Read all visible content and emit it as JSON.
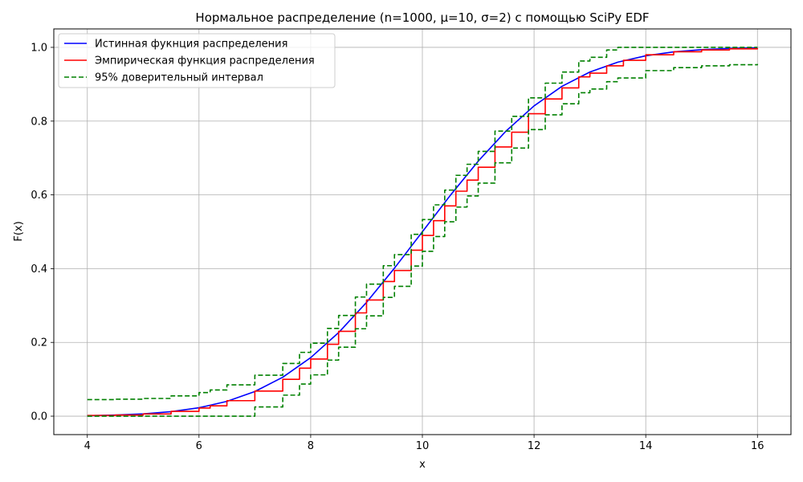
{
  "chart_data": {
    "type": "line",
    "title": "Нормальное распределение (n=1000, μ=10, σ=2) с помощью SciPy EDF",
    "xlabel": "x",
    "ylabel": "F(x)",
    "xlim": [
      3.4,
      16.6
    ],
    "ylim": [
      -0.05,
      1.05
    ],
    "xticks": [
      4,
      6,
      8,
      10,
      12,
      14,
      16
    ],
    "xtick_labels": [
      "4",
      "6",
      "8",
      "10",
      "12",
      "14",
      "16"
    ],
    "yticks": [
      0.0,
      0.2,
      0.4,
      0.6,
      0.8,
      1.0
    ],
    "ytick_labels": [
      "0.0",
      "0.2",
      "0.4",
      "0.6",
      "0.8",
      "1.0"
    ],
    "grid": true,
    "legend_placement": "upper-left",
    "series": [
      {
        "name": "Истинная фукнция распределения",
        "color": "#0000ff",
        "style": "solid",
        "x": [
          4,
          4.5,
          5,
          5.5,
          6,
          6.5,
          7,
          7.5,
          8,
          8.5,
          9,
          9.5,
          10,
          10.5,
          11,
          11.5,
          12,
          12.5,
          13,
          13.5,
          14,
          14.5,
          15,
          15.5,
          16
        ],
        "y": [
          0.0013,
          0.003,
          0.0062,
          0.0122,
          0.0228,
          0.0401,
          0.0668,
          0.1056,
          0.1587,
          0.2266,
          0.3085,
          0.4013,
          0.5,
          0.5987,
          0.6915,
          0.7734,
          0.8413,
          0.8944,
          0.9332,
          0.9599,
          0.9772,
          0.9878,
          0.9938,
          0.997,
          0.9987
        ]
      },
      {
        "name": "Эмпирическая функция распределения",
        "color": "#ff0000",
        "style": "solid",
        "x": [
          4,
          4.5,
          5,
          5.5,
          6,
          6.2,
          6.5,
          7,
          7.5,
          7.8,
          8,
          8.3,
          8.5,
          8.8,
          9,
          9.3,
          9.5,
          9.8,
          10,
          10.2,
          10.4,
          10.6,
          10.8,
          11,
          11.3,
          11.6,
          11.9,
          12.2,
          12.5,
          12.8,
          13,
          13.3,
          13.6,
          14,
          14.5,
          15,
          15.5,
          16
        ],
        "y": [
          0.002,
          0.003,
          0.006,
          0.013,
          0.022,
          0.028,
          0.042,
          0.068,
          0.1,
          0.13,
          0.155,
          0.195,
          0.23,
          0.28,
          0.315,
          0.365,
          0.395,
          0.45,
          0.49,
          0.53,
          0.57,
          0.61,
          0.64,
          0.675,
          0.73,
          0.77,
          0.82,
          0.86,
          0.89,
          0.92,
          0.93,
          0.95,
          0.965,
          0.98,
          0.988,
          0.993,
          0.996,
          0.998
        ]
      },
      {
        "name": "95% доверительный интервал",
        "color": "#008000",
        "style": "dashed",
        "x": [
          4,
          4.5,
          5,
          5.5,
          6,
          6.2,
          6.5,
          7,
          7.5,
          7.8,
          8,
          8.3,
          8.5,
          8.8,
          9,
          9.3,
          9.5,
          9.8,
          10,
          10.2,
          10.4,
          10.6,
          10.8,
          11,
          11.3,
          11.6,
          11.9,
          12.2,
          12.5,
          12.8,
          13,
          13.3,
          13.5,
          14,
          14.5,
          15,
          15.5,
          16
        ],
        "y": [
          0.045,
          0.046,
          0.048,
          0.055,
          0.064,
          0.071,
          0.085,
          0.111,
          0.143,
          0.173,
          0.198,
          0.238,
          0.273,
          0.323,
          0.358,
          0.408,
          0.438,
          0.493,
          0.533,
          0.573,
          0.613,
          0.653,
          0.683,
          0.718,
          0.773,
          0.813,
          0.863,
          0.903,
          0.933,
          0.963,
          0.973,
          0.993,
          1.0,
          1.0,
          1.0,
          1.0,
          1.0,
          1.0
        ]
      },
      {
        "name": "",
        "color": "#008000",
        "style": "dashed",
        "x": [
          4,
          4.5,
          5,
          5.5,
          6,
          6.2,
          6.5,
          7,
          7.5,
          7.8,
          8,
          8.3,
          8.5,
          8.8,
          9,
          9.3,
          9.5,
          9.8,
          10,
          10.2,
          10.4,
          10.6,
          10.8,
          11,
          11.3,
          11.6,
          11.9,
          12.2,
          12.5,
          12.8,
          13,
          13.3,
          13.5,
          14,
          14.5,
          15,
          15.5,
          16
        ],
        "y": [
          0.0,
          0.0,
          0.0,
          0.0,
          0.0,
          0.0,
          0.0,
          0.025,
          0.057,
          0.087,
          0.112,
          0.152,
          0.187,
          0.237,
          0.272,
          0.322,
          0.352,
          0.407,
          0.447,
          0.487,
          0.527,
          0.567,
          0.597,
          0.632,
          0.687,
          0.727,
          0.777,
          0.817,
          0.847,
          0.877,
          0.887,
          0.907,
          0.917,
          0.937,
          0.945,
          0.95,
          0.953,
          0.955
        ]
      }
    ]
  }
}
